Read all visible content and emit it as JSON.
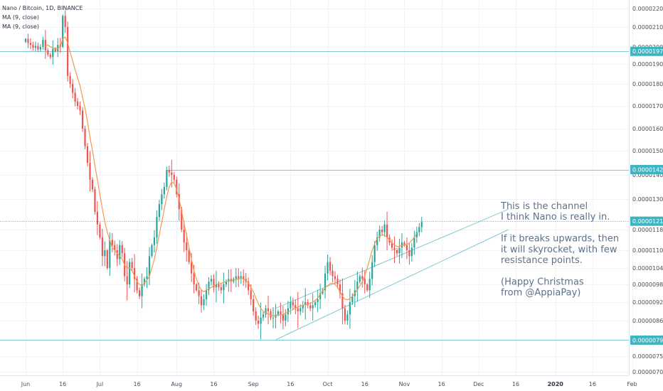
{
  "chart_data": {
    "type": "candlestick",
    "legend": {
      "title": "Nano / Bitcoin, 1D, BINANCE",
      "indicators": [
        "MA (9, close)",
        "MA (9, close)"
      ]
    },
    "y_axis": {
      "ylim": [
        7e-06,
        2.26e-05
      ],
      "tick_labels": [
        "0.00002200",
        "0.00002100",
        "0.00002000",
        "0.00001900",
        "0.00001800",
        "0.00001700",
        "0.00001600",
        "0.00001500",
        "0.00001400",
        "0.00001300",
        "0.00001180",
        "0.00001100",
        "0.00001040",
        "0.00000980",
        "0.00000920",
        "0.00000860",
        "0.00000800",
        "0.00000750",
        "0.00000700"
      ],
      "tick_values": [
        2200,
        2100,
        2000,
        1900,
        1800,
        1700,
        1600,
        1500,
        1400,
        1300,
        1180,
        1100,
        1040,
        980,
        920,
        860,
        800,
        750,
        700
      ]
    },
    "x_axis": {
      "tick_labels": [
        "Jun",
        "16",
        "Jul",
        "16",
        "Aug",
        "16",
        "Sep",
        "16",
        "Oct",
        "16",
        "Nov",
        "16",
        "Dec",
        "16",
        "2020",
        "16",
        "Feb"
      ],
      "tick_day_index": [
        0,
        15,
        30,
        45,
        61,
        76,
        92,
        107,
        122,
        137,
        153,
        168,
        183,
        198,
        214,
        229,
        245
      ],
      "bold_labels": [
        "2020"
      ]
    },
    "horizontal_levels": [
      {
        "label": "0.00001974",
        "value": 1974,
        "style": "solid"
      },
      {
        "label": "0.00001422",
        "value": 1422,
        "style": "solid",
        "start_day": 57
      },
      {
        "label": "0.00001213",
        "value": 1213,
        "style": "dotted"
      },
      {
        "label": "0.00000799",
        "value": 799,
        "style": "solid"
      }
    ],
    "channel_lines": [
      {
        "from": {
          "day": 101,
          "value": 800
        },
        "to": {
          "day": 195,
          "value": 1180
        }
      },
      {
        "from": {
          "day": 101,
          "value": 900
        },
        "to": {
          "day": 195,
          "value": 1260
        }
      }
    ],
    "candles_close": [
      2040,
      2020,
      2010,
      1995,
      2005,
      1985,
      2000,
      2035,
      1980,
      1955,
      1940,
      1990,
      1975,
      2010,
      2000,
      2160,
      2100,
      1840,
      1800,
      1760,
      1720,
      1700,
      1680,
      1600,
      1520,
      1450,
      1380,
      1340,
      1250,
      1200,
      1150,
      1080,
      1100,
      1040,
      1140,
      1120,
      1100,
      1070,
      1120,
      1090,
      1010,
      980,
      1060,
      1040,
      1000,
      960,
      940,
      980,
      1000,
      1010,
      1080,
      1120,
      1150,
      1230,
      1280,
      1320,
      1350,
      1420,
      1410,
      1400,
      1380,
      1320,
      1260,
      1180,
      1130,
      1100,
      1060,
      1020,
      980,
      960,
      940,
      910,
      930,
      960,
      990,
      1000,
      970,
      980,
      970,
      960,
      980,
      990,
      1000,
      990,
      1000,
      1010,
      1000,
      1010,
      1000,
      990,
      960,
      930,
      890,
      860,
      850,
      870,
      880,
      900,
      890,
      870,
      870,
      880,
      890,
      880,
      860,
      880,
      900,
      920,
      910,
      900,
      890,
      900,
      910,
      920,
      910,
      900,
      910,
      920,
      930,
      950,
      960,
      1020,
      1060,
      1030,
      1010,
      1000,
      980,
      950,
      900,
      860,
      880,
      920,
      940,
      960,
      990,
      1010,
      1000,
      980,
      960,
      1000,
      1060,
      1120,
      1150,
      1180,
      1170,
      1200,
      1150,
      1130,
      1110,
      1100,
      1090,
      1110,
      1130,
      1120,
      1100,
      1080,
      1110,
      1150,
      1170,
      1190,
      1210
    ],
    "ma_values": [
      null,
      null,
      null,
      null,
      null,
      null,
      null,
      null,
      2005,
      2010,
      2000,
      1995,
      1990,
      1990,
      2000,
      2040,
      2050,
      2020,
      1970,
      1920,
      1870,
      1830,
      1790,
      1740,
      1690,
      1630,
      1560,
      1500,
      1440,
      1380,
      1320,
      1260,
      1210,
      1170,
      1140,
      1110,
      1100,
      1090,
      1080,
      1070,
      1050,
      1040,
      1040,
      1030,
      1010,
      990,
      980,
      975,
      985,
      995,
      1010,
      1040,
      1070,
      1110,
      1160,
      1210,
      1260,
      1310,
      1350,
      1370,
      1365,
      1340,
      1300,
      1255,
      1205,
      1160,
      1110,
      1070,
      1030,
      1000,
      975,
      960,
      955,
      960,
      965,
      970,
      975,
      980,
      982,
      984,
      988,
      990,
      992,
      994,
      996,
      998,
      1000,
      1002,
      1000,
      995,
      985,
      970,
      955,
      935,
      915,
      900,
      890,
      885,
      882,
      878,
      876,
      876,
      878,
      878,
      880,
      884,
      888,
      892,
      896,
      900,
      904,
      908,
      910,
      912,
      914,
      916,
      920,
      926,
      934,
      946,
      958,
      968,
      976,
      982,
      984,
      980,
      970,
      955,
      940,
      930,
      928,
      932,
      940,
      950,
      962,
      975,
      990,
      1010,
      1040,
      1070,
      1100,
      1125,
      1145,
      1155,
      1160,
      1158,
      1150,
      1140,
      1128,
      1120,
      1115,
      1115,
      1118,
      1120,
      1122,
      1128,
      1138,
      1150,
      1165
    ]
  },
  "annotation": {
    "lines": [
      "This is the channel",
      "I think Nano is really in.",
      "",
      "If it breaks upwards, then",
      "it will skyrocket, with few",
      "resistance points.",
      "",
      "(Happy Christmas",
      "from @AppiaPay)"
    ]
  },
  "colors": {
    "up": "#26a69a",
    "down": "#ef5350",
    "ma": "#f39a4a",
    "levels": "#7fcad1",
    "badge": "#3fb4c1",
    "axis_text": "#4a4f58",
    "annotation": "#5f7188"
  }
}
